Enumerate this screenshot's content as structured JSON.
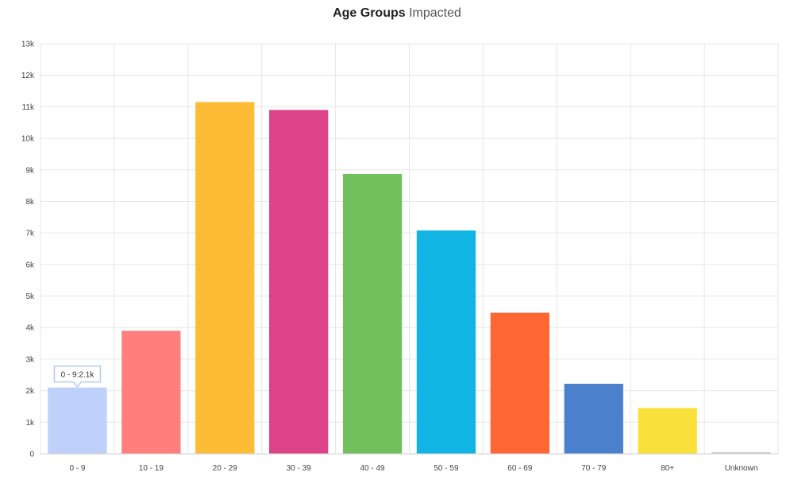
{
  "chart_data": {
    "type": "bar",
    "title_bold": "Age Groups",
    "title_rest": "Impacted",
    "categories": [
      "0 - 9",
      "10 - 19",
      "20 - 29",
      "30 - 39",
      "40 - 49",
      "50 - 59",
      "60 - 69",
      "70 - 79",
      "80+",
      "Unknown"
    ],
    "values": [
      2100,
      3900,
      11150,
      10900,
      8870,
      7080,
      4470,
      2220,
      1450,
      50
    ],
    "colors": [
      "#bfd1fb",
      "#ff7f7f",
      "#fcbc36",
      "#dd4488",
      "#72c05e",
      "#12b4e4",
      "#ff6633",
      "#4a80cc",
      "#f9e03a",
      "#cfcfcf"
    ],
    "ylim": [
      0,
      13000
    ],
    "yticks": [
      0,
      1000,
      2000,
      3000,
      4000,
      5000,
      6000,
      7000,
      8000,
      9000,
      10000,
      11000,
      12000,
      13000
    ],
    "ytick_labels": [
      "0",
      "1k",
      "2k",
      "3k",
      "4k",
      "5k",
      "6k",
      "7k",
      "8k",
      "9k",
      "10k",
      "11k",
      "12k",
      "13k"
    ],
    "grid": true,
    "tooltip": {
      "category_index": 0,
      "text": "0 - 9:2.1k"
    }
  }
}
